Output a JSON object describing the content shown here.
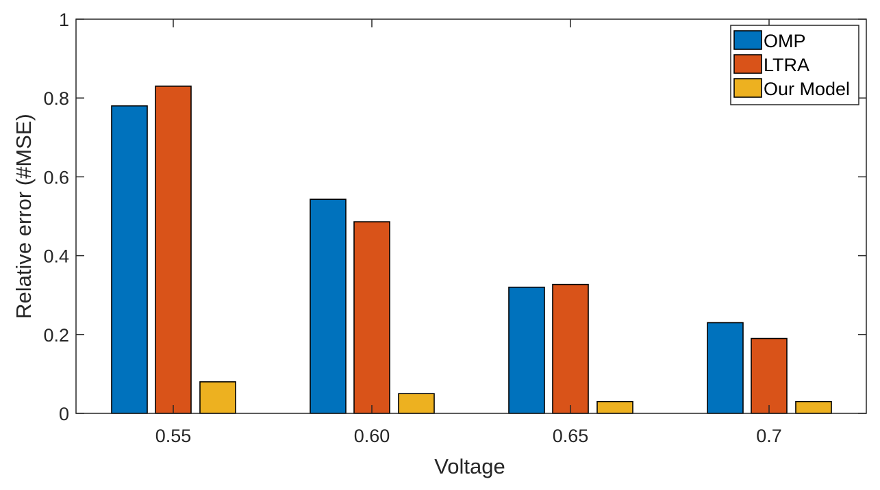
{
  "chart_data": {
    "type": "bar",
    "title": "",
    "xlabel": "Voltage",
    "ylabel": "Relative error (#MSE)",
    "categories": [
      "0.55",
      "0.60",
      "0.65",
      "0.7"
    ],
    "series": [
      {
        "name": "OMP",
        "color": "#0072BD",
        "values": [
          0.78,
          0.543,
          0.32,
          0.23
        ]
      },
      {
        "name": "LTRA",
        "color": "#D95319",
        "values": [
          0.83,
          0.486,
          0.327,
          0.19
        ]
      },
      {
        "name": "Our Model",
        "color": "#EDB120",
        "values": [
          0.08,
          0.05,
          0.03,
          0.03
        ]
      }
    ],
    "ylim": [
      0,
      1
    ],
    "yticks": [
      0,
      0.2,
      0.4,
      0.6,
      0.8,
      1
    ],
    "ytick_labels": [
      "0",
      "0.2",
      "0.4",
      "0.6",
      "0.8",
      "1"
    ],
    "grid": false,
    "legend_position": "upper right"
  }
}
